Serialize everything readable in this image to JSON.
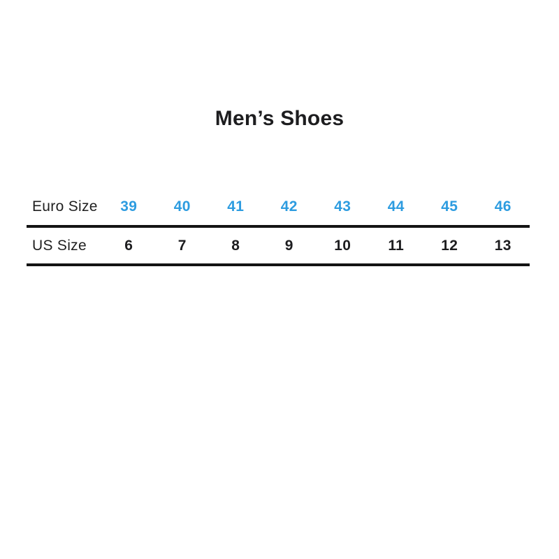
{
  "title": "Men’s Shoes",
  "colors": {
    "background": "#ffffff",
    "accent_blue": "#2d9ce0",
    "text_black": "#1d1d1f",
    "rule_black": "#131313"
  },
  "chart_data": {
    "type": "table",
    "title": "Men’s Shoes",
    "rows": [
      {
        "label": "Euro Size",
        "values": [
          "39",
          "40",
          "41",
          "42",
          "43",
          "44",
          "45",
          "46"
        ],
        "value_color": "#2d9ce0"
      },
      {
        "label": "US Size",
        "values": [
          "6",
          "7",
          "8",
          "9",
          "10",
          "11",
          "12",
          "13"
        ],
        "value_color": "#1d1d1f"
      }
    ],
    "layout": {
      "gridlines": "horizontal rules below each row",
      "legend": "none"
    }
  }
}
